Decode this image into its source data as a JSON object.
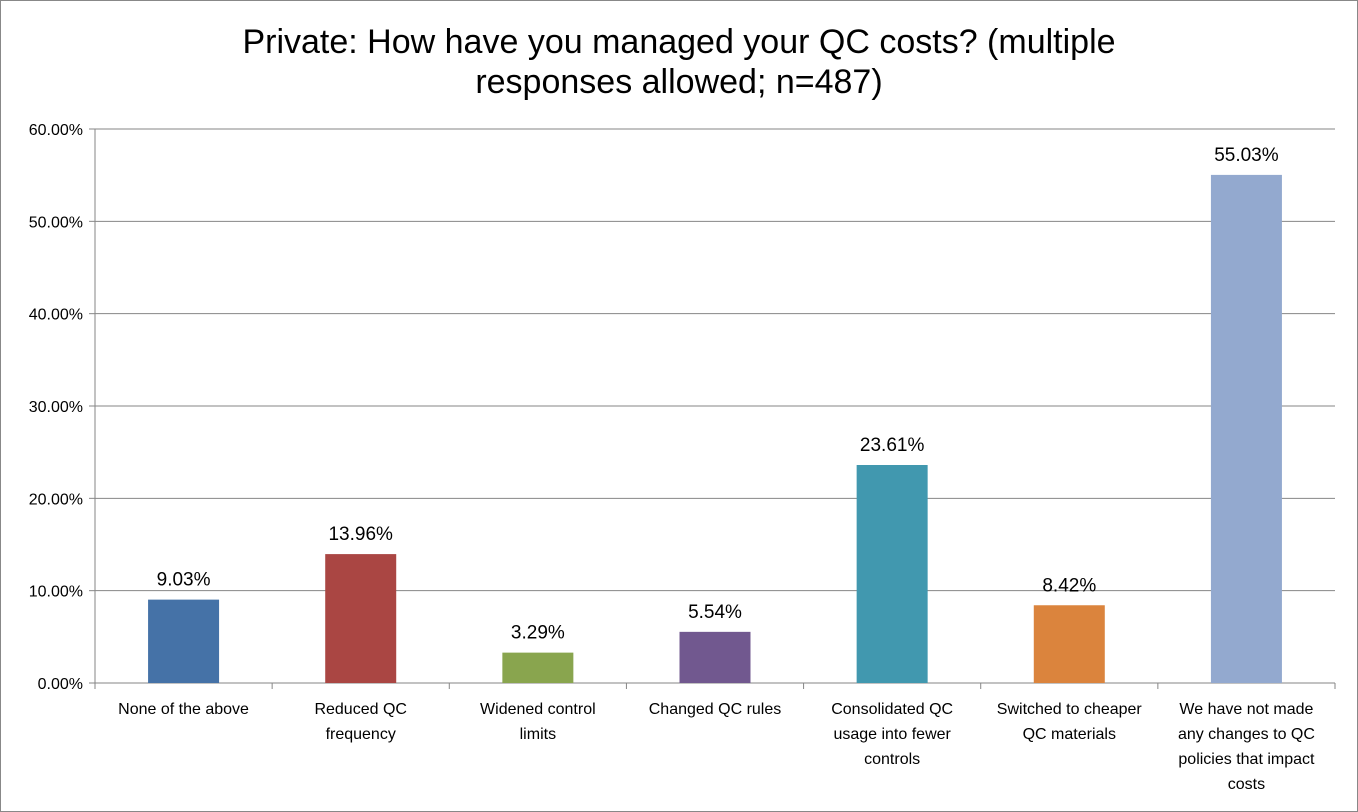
{
  "chart_data": {
    "type": "bar",
    "title_lines": [
      "Private: How have you managed your QC costs? (multiple",
      "responses allowed; n=487)"
    ],
    "categories": [
      [
        "None of the above"
      ],
      [
        "Reduced QC",
        "frequency"
      ],
      [
        "Widened control",
        "limits"
      ],
      [
        "Changed QC rules"
      ],
      [
        "Consolidated QC",
        "usage into fewer",
        "controls"
      ],
      [
        "Switched to cheaper",
        "QC materials"
      ],
      [
        "We have not made",
        "any changes to QC",
        "policies that impact",
        "costs"
      ]
    ],
    "values": [
      9.03,
      13.96,
      3.29,
      5.54,
      23.61,
      8.42,
      55.03
    ],
    "data_labels": [
      "9.03%",
      "13.96%",
      "3.29%",
      "5.54%",
      "23.61%",
      "8.42%",
      "55.03%"
    ],
    "colors": [
      "#4572A7",
      "#AA4643",
      "#89A54E",
      "#71588F",
      "#4198AF",
      "#DB843D",
      "#93A9CF"
    ],
    "ylim": [
      0,
      60
    ],
    "yticks": [
      "0.00%",
      "10.00%",
      "20.00%",
      "30.00%",
      "40.00%",
      "50.00%",
      "60.00%"
    ],
    "xlabel": "",
    "ylabel": "",
    "grid": true,
    "legend": "none"
  }
}
